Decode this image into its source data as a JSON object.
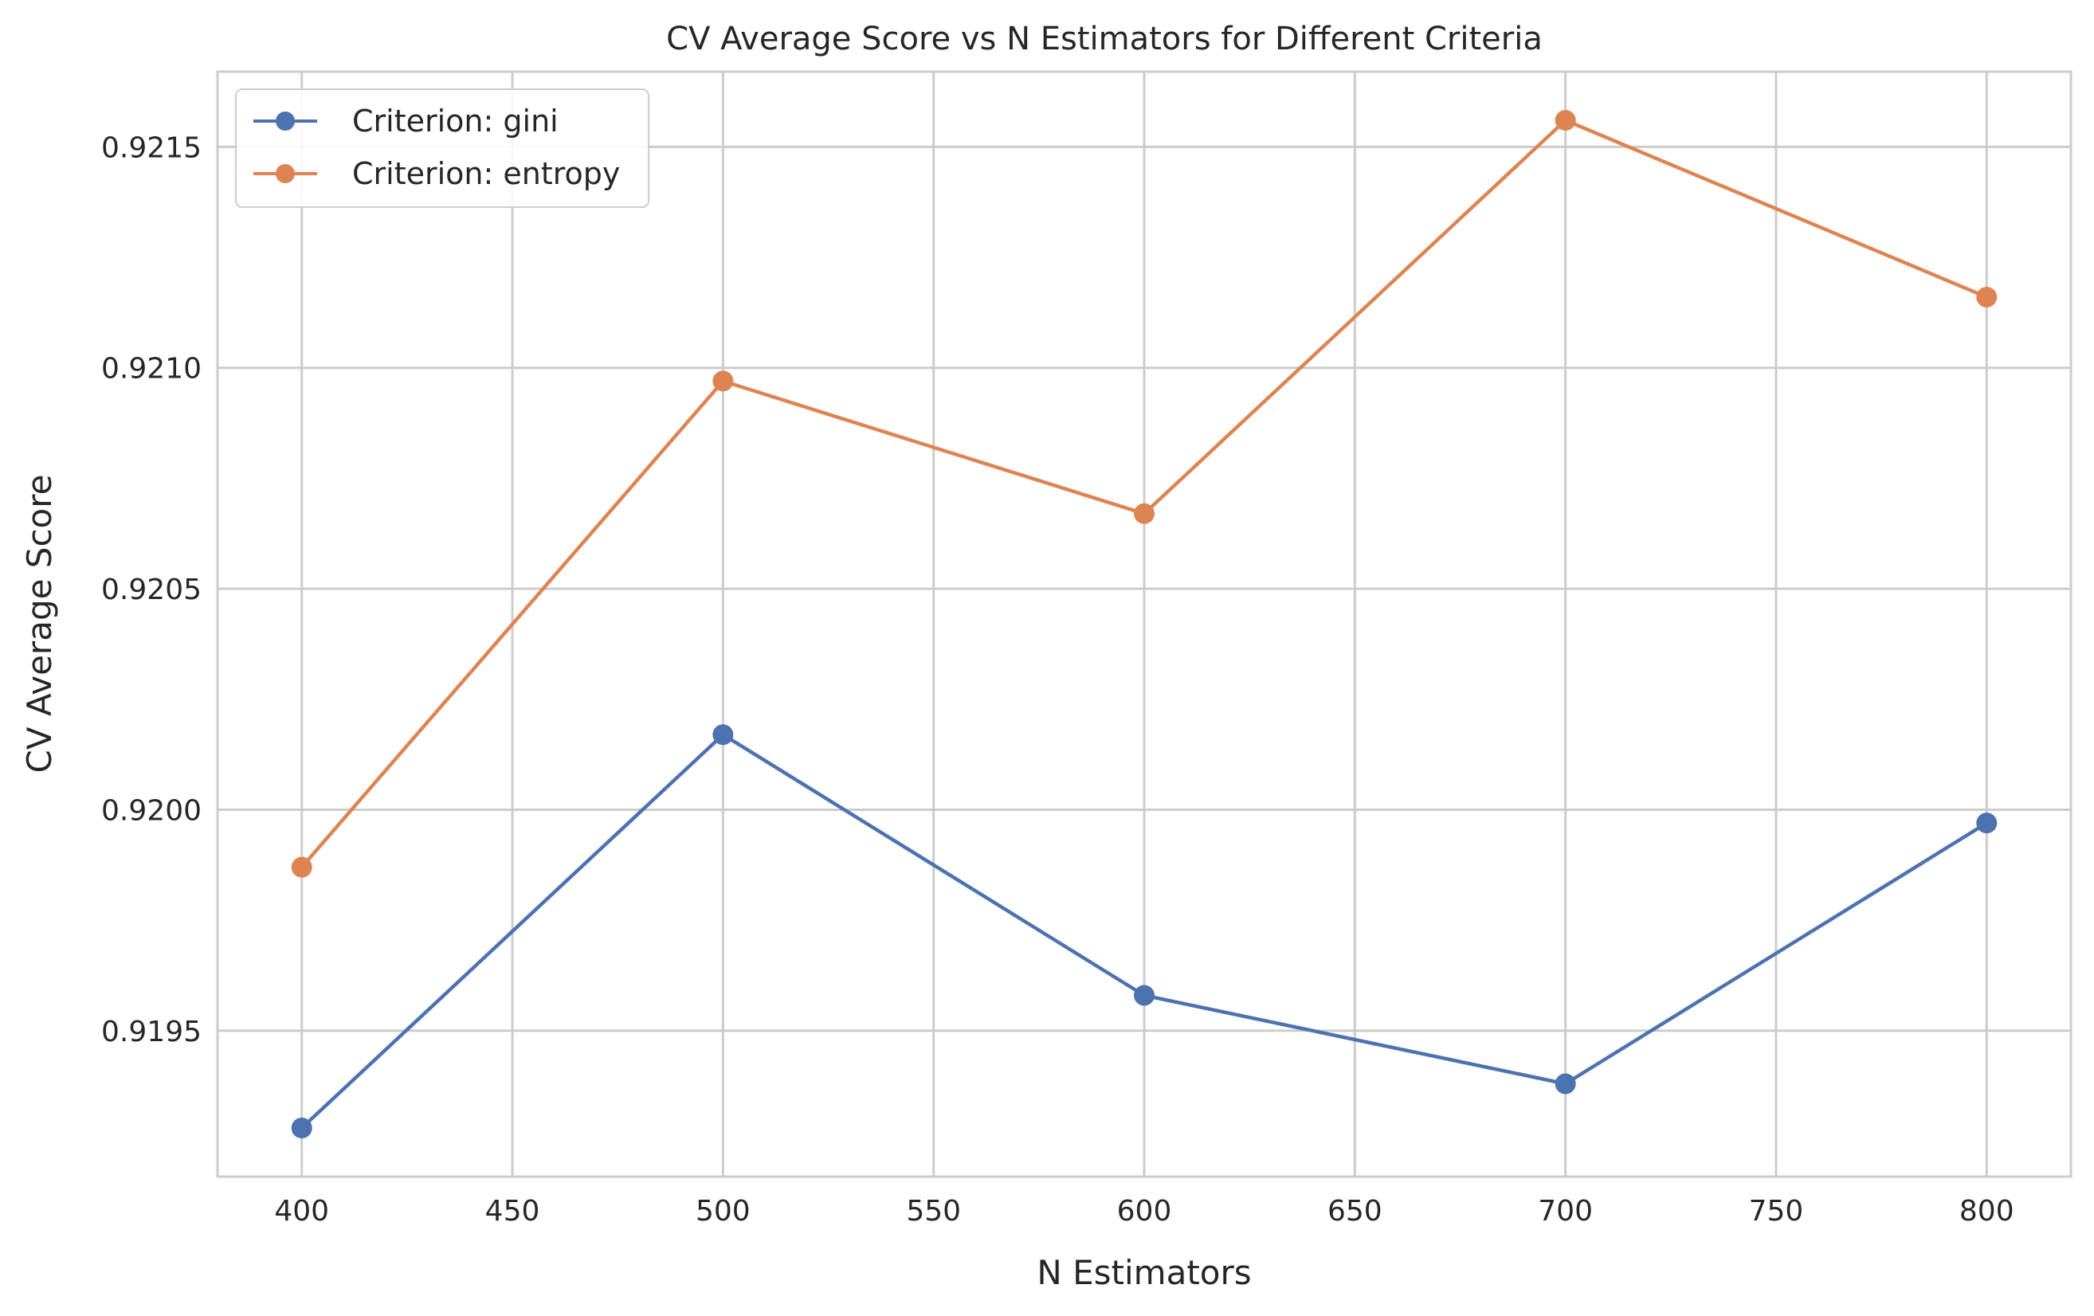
{
  "chart_data": {
    "type": "line",
    "title": "CV Average Score vs N Estimators for Different Criteria",
    "xlabel": "N Estimators",
    "ylabel": "CV Average Score",
    "x": [
      400,
      500,
      600,
      700,
      800
    ],
    "xlim": [
      380,
      820
    ],
    "ylim": [
      0.91917,
      0.92167
    ],
    "xticks": [
      400,
      450,
      500,
      550,
      600,
      650,
      700,
      750,
      800
    ],
    "yticks": [
      0.9195,
      0.92,
      0.9205,
      0.921,
      0.9215
    ],
    "xtick_labels": [
      "400",
      "450",
      "500",
      "550",
      "600",
      "650",
      "700",
      "750",
      "800"
    ],
    "ytick_labels": [
      "0.9195",
      "0.9200",
      "0.9205",
      "0.9210",
      "0.9215"
    ],
    "grid": true,
    "legend_position": "top-left",
    "series": [
      {
        "name": "Criterion: gini",
        "color": "#4c72b0",
        "marker": "circle",
        "values": [
          0.91928,
          0.92017,
          0.91958,
          0.91938,
          0.91997
        ]
      },
      {
        "name": "Criterion: entropy",
        "color": "#dd8452",
        "marker": "circle",
        "values": [
          0.91987,
          0.92097,
          0.92067,
          0.92156,
          0.92116
        ]
      }
    ]
  }
}
